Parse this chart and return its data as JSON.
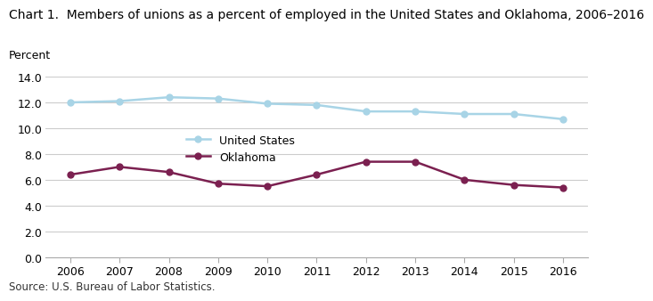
{
  "title": "Chart 1.  Members of unions as a percent of employed in the United States and Oklahoma, 2006–2016",
  "ylabel": "Percent",
  "source": "Source: U.S. Bureau of Labor Statistics.",
  "years": [
    2006,
    2007,
    2008,
    2009,
    2010,
    2011,
    2012,
    2013,
    2014,
    2015,
    2016
  ],
  "us_values": [
    12.0,
    12.1,
    12.4,
    12.3,
    11.9,
    11.8,
    11.3,
    11.3,
    11.1,
    11.1,
    10.7
  ],
  "ok_values": [
    6.4,
    7.0,
    6.6,
    5.7,
    5.5,
    6.4,
    7.4,
    7.4,
    6.0,
    5.6,
    5.4
  ],
  "us_color": "#a8d4e6",
  "ok_color": "#7b2050",
  "us_label": "United States",
  "ok_label": "Oklahoma",
  "ylim": [
    0,
    14.0
  ],
  "yticks": [
    0.0,
    2.0,
    4.0,
    6.0,
    8.0,
    10.0,
    12.0,
    14.0
  ],
  "grid_color": "#cccccc",
  "background_color": "#ffffff",
  "title_fontsize": 10.0,
  "axis_label_fontsize": 9.0,
  "tick_fontsize": 9.0,
  "source_fontsize": 8.5,
  "linewidth": 1.8,
  "markersize": 5,
  "legend_fontsize": 9.0
}
